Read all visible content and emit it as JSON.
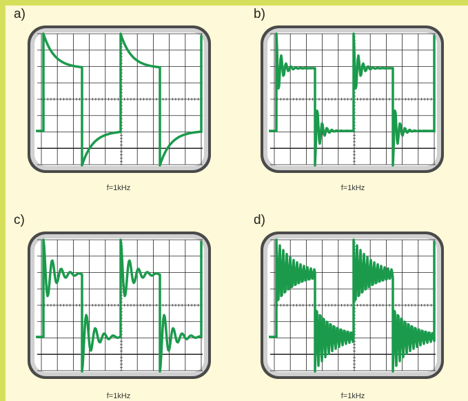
{
  "panels": [
    {
      "label": "a)",
      "caption": "f=1kHz"
    },
    {
      "label": "b)",
      "caption": "f=1kHz"
    },
    {
      "label": "c)",
      "caption": "f=1kHz"
    },
    {
      "label": "d)",
      "caption": "f=1kHz"
    }
  ]
}
